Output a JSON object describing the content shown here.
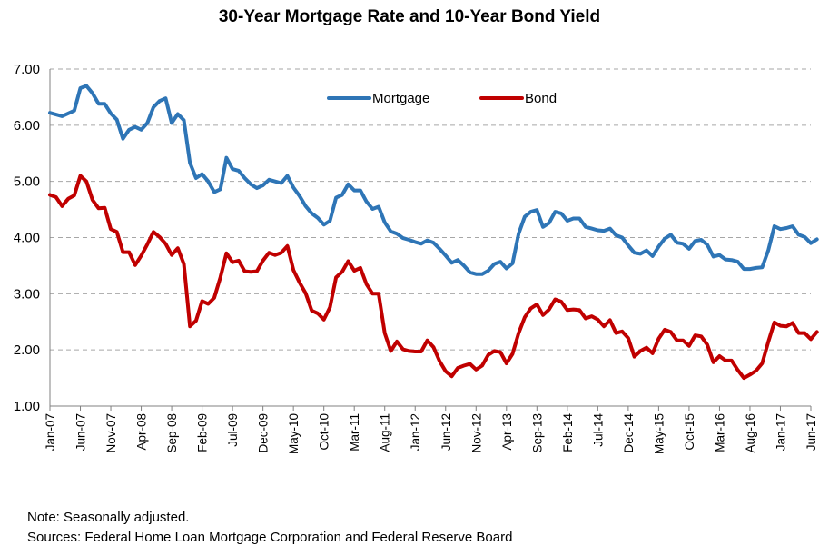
{
  "chart_data": {
    "type": "line",
    "title": "30-Year Mortgage Rate and 10-Year Bond Yield",
    "xlabel": "",
    "ylabel": "",
    "ylim": [
      1.0,
      7.0
    ],
    "y_ticks": [
      "1.00",
      "2.00",
      "3.00",
      "4.00",
      "5.00",
      "6.00",
      "7.00"
    ],
    "x_range": [
      "2007-01",
      "2017-06"
    ],
    "x_tick_labels": [
      "Jan-07",
      "Jun-07",
      "Nov-07",
      "Apr-08",
      "Sep-08",
      "Feb-09",
      "Jul-09",
      "Dec-09",
      "May-10",
      "Oct-10",
      "Mar-11",
      "Aug-11",
      "Jan-12",
      "Jun-12",
      "Nov-12",
      "Apr-13",
      "Sep-13",
      "Feb-14",
      "Jul-14",
      "Dec-14",
      "May-15",
      "Oct-15",
      "Mar-16",
      "Aug-16",
      "Jan-17",
      "Jun-17"
    ],
    "grid": "horizontal dashed",
    "legend": "top-center",
    "series": [
      {
        "name": "Mortgage",
        "color": "#2E75B6",
        "points": [
          [
            "2007-01",
            6.22
          ],
          [
            "2007-03",
            6.16
          ],
          [
            "2007-05",
            6.26
          ],
          [
            "2007-06",
            6.66
          ],
          [
            "2007-07",
            6.7
          ],
          [
            "2007-08",
            6.57
          ],
          [
            "2007-09",
            6.38
          ],
          [
            "2007-10",
            6.38
          ],
          [
            "2007-11",
            6.21
          ],
          [
            "2007-12",
            6.1
          ],
          [
            "2008-01",
            5.76
          ],
          [
            "2008-02",
            5.92
          ],
          [
            "2008-03",
            5.97
          ],
          [
            "2008-04",
            5.92
          ],
          [
            "2008-05",
            6.04
          ],
          [
            "2008-06",
            6.32
          ],
          [
            "2008-07",
            6.43
          ],
          [
            "2008-08",
            6.48
          ],
          [
            "2008-09",
            6.04
          ],
          [
            "2008-10",
            6.2
          ],
          [
            "2008-11",
            6.09
          ],
          [
            "2008-12",
            5.33
          ],
          [
            "2009-01",
            5.06
          ],
          [
            "2009-02",
            5.13
          ],
          [
            "2009-03",
            5.0
          ],
          [
            "2009-04",
            4.81
          ],
          [
            "2009-05",
            4.86
          ],
          [
            "2009-06",
            5.42
          ],
          [
            "2009-07",
            5.22
          ],
          [
            "2009-08",
            5.19
          ],
          [
            "2009-09",
            5.06
          ],
          [
            "2009-10",
            4.95
          ],
          [
            "2009-11",
            4.88
          ],
          [
            "2009-12",
            4.93
          ],
          [
            "2010-01",
            5.03
          ],
          [
            "2010-02",
            5.0
          ],
          [
            "2010-03",
            4.97
          ],
          [
            "2010-04",
            5.1
          ],
          [
            "2010-05",
            4.89
          ],
          [
            "2010-06",
            4.74
          ],
          [
            "2010-07",
            4.56
          ],
          [
            "2010-08",
            4.43
          ],
          [
            "2010-09",
            4.35
          ],
          [
            "2010-10",
            4.23
          ],
          [
            "2010-11",
            4.3
          ],
          [
            "2010-12",
            4.71
          ],
          [
            "2011-01",
            4.76
          ],
          [
            "2011-02",
            4.95
          ],
          [
            "2011-03",
            4.84
          ],
          [
            "2011-04",
            4.84
          ],
          [
            "2011-05",
            4.64
          ],
          [
            "2011-06",
            4.51
          ],
          [
            "2011-07",
            4.55
          ],
          [
            "2011-08",
            4.27
          ],
          [
            "2011-09",
            4.11
          ],
          [
            "2011-10",
            4.07
          ],
          [
            "2011-11",
            3.99
          ],
          [
            "2011-12",
            3.96
          ],
          [
            "2012-01",
            3.92
          ],
          [
            "2012-02",
            3.89
          ],
          [
            "2012-03",
            3.95
          ],
          [
            "2012-04",
            3.91
          ],
          [
            "2012-05",
            3.8
          ],
          [
            "2012-06",
            3.68
          ],
          [
            "2012-07",
            3.55
          ],
          [
            "2012-08",
            3.6
          ],
          [
            "2012-09",
            3.5
          ],
          [
            "2012-10",
            3.38
          ],
          [
            "2012-11",
            3.35
          ],
          [
            "2012-12",
            3.35
          ],
          [
            "2013-01",
            3.41
          ],
          [
            "2013-02",
            3.53
          ],
          [
            "2013-03",
            3.57
          ],
          [
            "2013-04",
            3.45
          ],
          [
            "2013-05",
            3.54
          ],
          [
            "2013-06",
            4.07
          ],
          [
            "2013-07",
            4.37
          ],
          [
            "2013-08",
            4.46
          ],
          [
            "2013-09",
            4.49
          ],
          [
            "2013-10",
            4.19
          ],
          [
            "2013-11",
            4.26
          ],
          [
            "2013-12",
            4.46
          ],
          [
            "2014-01",
            4.43
          ],
          [
            "2014-02",
            4.3
          ],
          [
            "2014-03",
            4.34
          ],
          [
            "2014-04",
            4.34
          ],
          [
            "2014-05",
            4.19
          ],
          [
            "2014-06",
            4.16
          ],
          [
            "2014-07",
            4.13
          ],
          [
            "2014-08",
            4.12
          ],
          [
            "2014-09",
            4.16
          ],
          [
            "2014-10",
            4.04
          ],
          [
            "2014-11",
            4.0
          ],
          [
            "2014-12",
            3.86
          ],
          [
            "2015-01",
            3.73
          ],
          [
            "2015-02",
            3.71
          ],
          [
            "2015-03",
            3.77
          ],
          [
            "2015-04",
            3.67
          ],
          [
            "2015-05",
            3.84
          ],
          [
            "2015-06",
            3.98
          ],
          [
            "2015-07",
            4.05
          ],
          [
            "2015-08",
            3.91
          ],
          [
            "2015-09",
            3.89
          ],
          [
            "2015-10",
            3.8
          ],
          [
            "2015-11",
            3.94
          ],
          [
            "2015-12",
            3.96
          ],
          [
            "2016-01",
            3.87
          ],
          [
            "2016-02",
            3.66
          ],
          [
            "2016-03",
            3.69
          ],
          [
            "2016-04",
            3.61
          ],
          [
            "2016-05",
            3.6
          ],
          [
            "2016-06",
            3.57
          ],
          [
            "2016-07",
            3.44
          ],
          [
            "2016-08",
            3.44
          ],
          [
            "2016-09",
            3.46
          ],
          [
            "2016-10",
            3.47
          ],
          [
            "2016-11",
            3.77
          ],
          [
            "2016-12",
            4.2
          ],
          [
            "2017-01",
            4.15
          ],
          [
            "2017-02",
            4.17
          ],
          [
            "2017-03",
            4.2
          ],
          [
            "2017-04",
            4.05
          ],
          [
            "2017-05",
            4.01
          ],
          [
            "2017-06",
            3.9
          ],
          [
            "2017-07",
            3.97
          ]
        ]
      },
      {
        "name": "Bond",
        "color": "#C00000",
        "points": [
          [
            "2007-01",
            4.76
          ],
          [
            "2007-02",
            4.72
          ],
          [
            "2007-03",
            4.56
          ],
          [
            "2007-04",
            4.69
          ],
          [
            "2007-05",
            4.75
          ],
          [
            "2007-06",
            5.1
          ],
          [
            "2007-07",
            5.0
          ],
          [
            "2007-08",
            4.67
          ],
          [
            "2007-09",
            4.52
          ],
          [
            "2007-10",
            4.53
          ],
          [
            "2007-11",
            4.15
          ],
          [
            "2007-12",
            4.1
          ],
          [
            "2008-01",
            3.74
          ],
          [
            "2008-02",
            3.74
          ],
          [
            "2008-03",
            3.51
          ],
          [
            "2008-04",
            3.68
          ],
          [
            "2008-05",
            3.88
          ],
          [
            "2008-06",
            4.1
          ],
          [
            "2008-07",
            4.01
          ],
          [
            "2008-08",
            3.89
          ],
          [
            "2008-09",
            3.69
          ],
          [
            "2008-10",
            3.81
          ],
          [
            "2008-11",
            3.53
          ],
          [
            "2008-12",
            2.42
          ],
          [
            "2009-01",
            2.52
          ],
          [
            "2009-02",
            2.87
          ],
          [
            "2009-03",
            2.82
          ],
          [
            "2009-04",
            2.93
          ],
          [
            "2009-05",
            3.29
          ],
          [
            "2009-06",
            3.72
          ],
          [
            "2009-07",
            3.56
          ],
          [
            "2009-08",
            3.59
          ],
          [
            "2009-09",
            3.4
          ],
          [
            "2009-10",
            3.39
          ],
          [
            "2009-11",
            3.4
          ],
          [
            "2009-12",
            3.59
          ],
          [
            "2010-01",
            3.73
          ],
          [
            "2010-02",
            3.69
          ],
          [
            "2010-03",
            3.73
          ],
          [
            "2010-04",
            3.85
          ],
          [
            "2010-05",
            3.42
          ],
          [
            "2010-06",
            3.2
          ],
          [
            "2010-07",
            3.01
          ],
          [
            "2010-08",
            2.7
          ],
          [
            "2010-09",
            2.65
          ],
          [
            "2010-10",
            2.54
          ],
          [
            "2010-11",
            2.76
          ],
          [
            "2010-12",
            3.29
          ],
          [
            "2011-01",
            3.39
          ],
          [
            "2011-02",
            3.58
          ],
          [
            "2011-03",
            3.41
          ],
          [
            "2011-04",
            3.46
          ],
          [
            "2011-05",
            3.17
          ],
          [
            "2011-06",
            3.0
          ],
          [
            "2011-07",
            3.0
          ],
          [
            "2011-08",
            2.3
          ],
          [
            "2011-09",
            1.98
          ],
          [
            "2011-10",
            2.15
          ],
          [
            "2011-11",
            2.01
          ],
          [
            "2011-12",
            1.98
          ],
          [
            "2012-01",
            1.97
          ],
          [
            "2012-02",
            1.97
          ],
          [
            "2012-03",
            2.17
          ],
          [
            "2012-04",
            2.05
          ],
          [
            "2012-05",
            1.8
          ],
          [
            "2012-06",
            1.62
          ],
          [
            "2012-07",
            1.53
          ],
          [
            "2012-08",
            1.68
          ],
          [
            "2012-09",
            1.72
          ],
          [
            "2012-10",
            1.75
          ],
          [
            "2012-11",
            1.65
          ],
          [
            "2012-12",
            1.72
          ],
          [
            "2013-01",
            1.91
          ],
          [
            "2013-02",
            1.98
          ],
          [
            "2013-03",
            1.96
          ],
          [
            "2013-04",
            1.76
          ],
          [
            "2013-05",
            1.93
          ],
          [
            "2013-06",
            2.3
          ],
          [
            "2013-07",
            2.58
          ],
          [
            "2013-08",
            2.74
          ],
          [
            "2013-09",
            2.81
          ],
          [
            "2013-10",
            2.62
          ],
          [
            "2013-11",
            2.72
          ],
          [
            "2013-12",
            2.9
          ],
          [
            "2014-01",
            2.86
          ],
          [
            "2014-02",
            2.71
          ],
          [
            "2014-03",
            2.72
          ],
          [
            "2014-04",
            2.71
          ],
          [
            "2014-05",
            2.56
          ],
          [
            "2014-06",
            2.6
          ],
          [
            "2014-07",
            2.54
          ],
          [
            "2014-08",
            2.42
          ],
          [
            "2014-09",
            2.53
          ],
          [
            "2014-10",
            2.3
          ],
          [
            "2014-11",
            2.33
          ],
          [
            "2014-12",
            2.21
          ],
          [
            "2015-01",
            1.88
          ],
          [
            "2015-02",
            1.98
          ],
          [
            "2015-03",
            2.04
          ],
          [
            "2015-04",
            1.94
          ],
          [
            "2015-05",
            2.2
          ],
          [
            "2015-06",
            2.36
          ],
          [
            "2015-07",
            2.32
          ],
          [
            "2015-08",
            2.17
          ],
          [
            "2015-09",
            2.17
          ],
          [
            "2015-10",
            2.07
          ],
          [
            "2015-11",
            2.26
          ],
          [
            "2015-12",
            2.24
          ],
          [
            "2016-01",
            2.09
          ],
          [
            "2016-02",
            1.78
          ],
          [
            "2016-03",
            1.89
          ],
          [
            "2016-04",
            1.81
          ],
          [
            "2016-05",
            1.81
          ],
          [
            "2016-06",
            1.64
          ],
          [
            "2016-07",
            1.5
          ],
          [
            "2016-08",
            1.56
          ],
          [
            "2016-09",
            1.63
          ],
          [
            "2016-10",
            1.76
          ],
          [
            "2016-11",
            2.14
          ],
          [
            "2016-12",
            2.49
          ],
          [
            "2017-01",
            2.43
          ],
          [
            "2017-02",
            2.42
          ],
          [
            "2017-03",
            2.48
          ],
          [
            "2017-04",
            2.3
          ],
          [
            "2017-05",
            2.3
          ],
          [
            "2017-06",
            2.19
          ],
          [
            "2017-07",
            2.32
          ]
        ]
      }
    ]
  },
  "notes": {
    "note": "Note: Seasonally adjusted.",
    "sources": "Sources: Federal Home Loan Mortgage Corporation and Federal Reserve Board"
  }
}
